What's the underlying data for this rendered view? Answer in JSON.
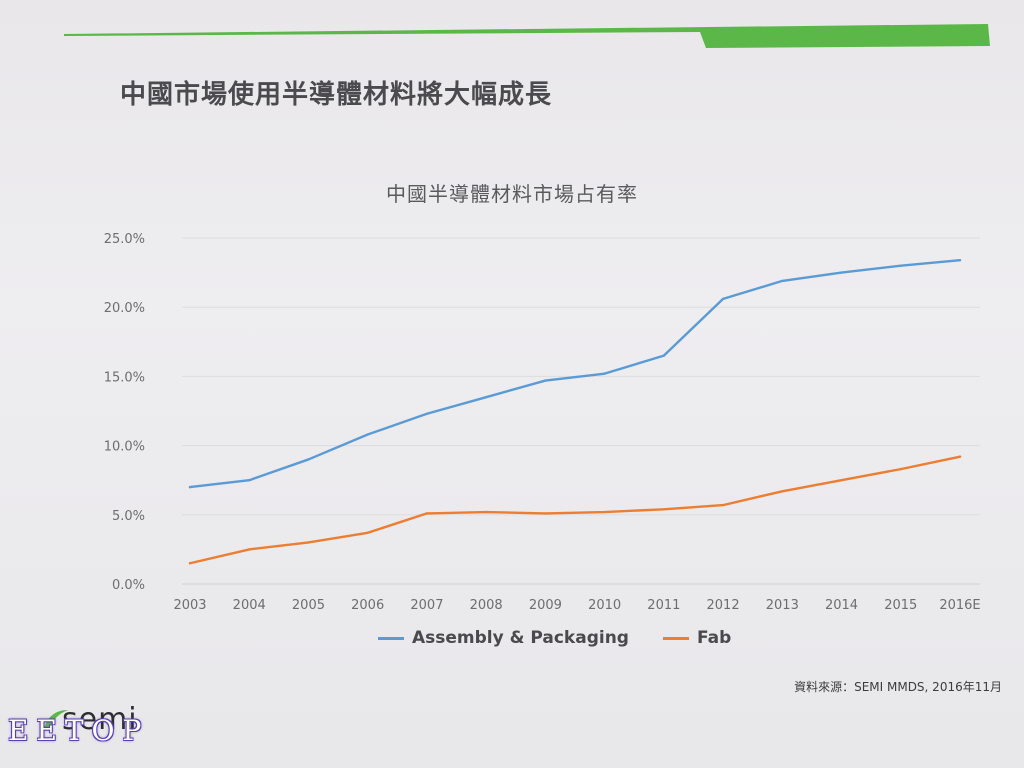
{
  "slide": {
    "title": "中國市場使用半導體材料將大幅成長",
    "accent_color": "#5bb848",
    "source": "資料來源：SEMI MMDS, 2016年11月",
    "logo_text": "semi",
    "watermark": "EETOP"
  },
  "chart_data": {
    "type": "line",
    "title": "中國半導體材料市場占有率",
    "xlabel": "",
    "ylabel": "",
    "categories": [
      "2003",
      "2004",
      "2005",
      "2006",
      "2007",
      "2008",
      "2009",
      "2010",
      "2011",
      "2012",
      "2013",
      "2014",
      "2015",
      "2016E"
    ],
    "y_ticks": [
      "0.0%",
      "5.0%",
      "10.0%",
      "15.0%",
      "20.0%",
      "25.0%"
    ],
    "ylim": [
      0,
      25
    ],
    "grid": true,
    "legend_position": "bottom",
    "series": [
      {
        "name": "Assembly & Packaging",
        "color": "#5b9bd5",
        "values": [
          7.0,
          7.5,
          9.0,
          10.8,
          12.3,
          13.5,
          14.7,
          15.2,
          16.5,
          20.6,
          21.9,
          22.5,
          23.0,
          23.4
        ]
      },
      {
        "name": "Fab",
        "color": "#ed7d31",
        "values": [
          1.5,
          2.5,
          3.0,
          3.7,
          5.1,
          5.2,
          5.1,
          5.2,
          5.4,
          5.7,
          6.7,
          7.5,
          8.3,
          9.2
        ]
      }
    ]
  }
}
